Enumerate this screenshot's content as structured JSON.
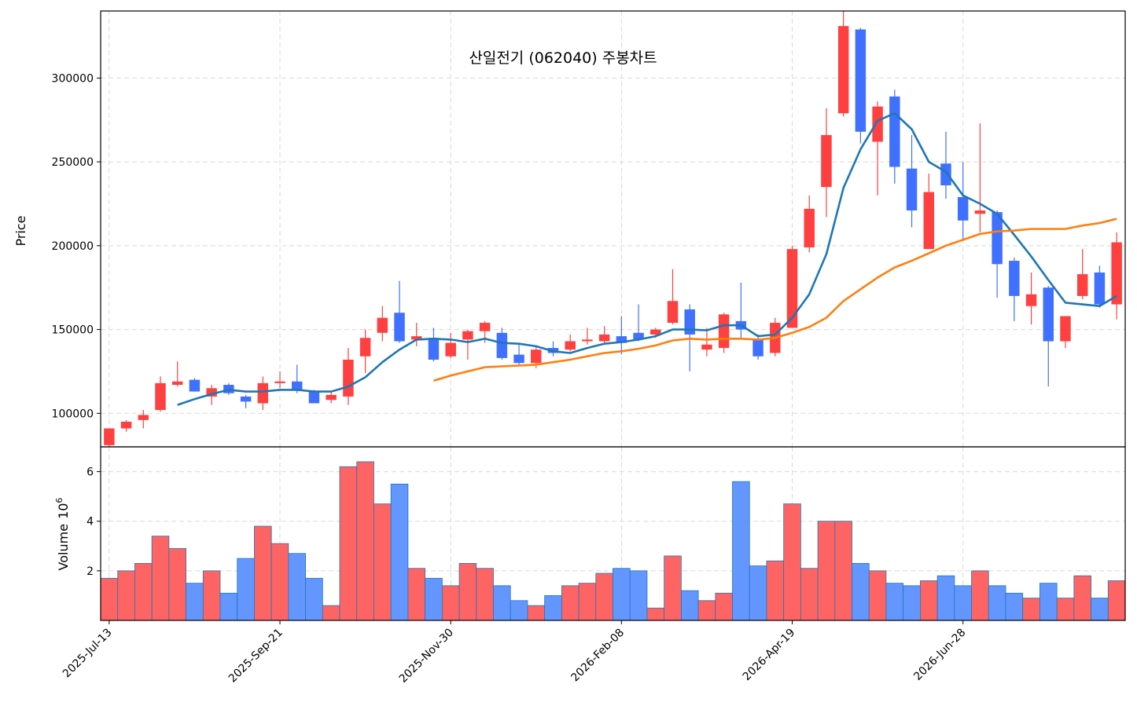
{
  "chart_data": [
    {
      "type": "candlestick",
      "title": "산일전기 (062040) 주봉차트",
      "ylabel": "Price",
      "ylim": [
        80000,
        340000
      ],
      "yticks": [
        100000,
        150000,
        200000,
        250000,
        300000
      ],
      "ytick_labels": [
        "100000",
        "150000",
        "200000",
        "250000",
        "300000"
      ],
      "x_tick_labels": [
        "2025-Jul-13",
        "2025-Sep-21",
        "2025-Nov-30",
        "2026-Feb-08",
        "2026-Apr-19",
        "2026-Jun-28"
      ],
      "x_tick_indices": [
        0,
        10,
        20,
        30,
        40,
        50
      ],
      "grid": true,
      "colors": {
        "up": "#ff4040",
        "down": "#4070ff",
        "ma_short": "#1f77b4",
        "ma_long": "#ff7f0e"
      },
      "ohlc": [
        {
          "date": "2025-Jul-13",
          "open": 81000,
          "high": 91000,
          "low": 80000,
          "close": 91000
        },
        {
          "date": "2025-Jul-20",
          "open": 91000,
          "high": 96000,
          "low": 89000,
          "close": 95000
        },
        {
          "date": "2025-Jul-27",
          "open": 96000,
          "high": 102000,
          "low": 91000,
          "close": 99000
        },
        {
          "date": "2025-Aug-03",
          "open": 102000,
          "high": 122000,
          "low": 101000,
          "close": 118000
        },
        {
          "date": "2025-Aug-10",
          "open": 117000,
          "high": 131000,
          "low": 116000,
          "close": 119000
        },
        {
          "date": "2025-Aug-17",
          "open": 120000,
          "high": 121000,
          "low": 113000,
          "close": 113000
        },
        {
          "date": "2025-Aug-24",
          "open": 110000,
          "high": 117000,
          "low": 105000,
          "close": 115000
        },
        {
          "date": "2025-Aug-31",
          "open": 117000,
          "high": 118000,
          "low": 111000,
          "close": 112000
        },
        {
          "date": "2025-Sep-07",
          "open": 110000,
          "high": 111000,
          "low": 103000,
          "close": 107000
        },
        {
          "date": "2025-Sep-14",
          "open": 106000,
          "high": 122000,
          "low": 102000,
          "close": 118000
        },
        {
          "date": "2025-Sep-21",
          "open": 118000,
          "high": 125000,
          "low": 115000,
          "close": 119000
        },
        {
          "date": "2025-Sep-28",
          "open": 119000,
          "high": 129000,
          "low": 112000,
          "close": 114000
        },
        {
          "date": "2025-Oct-05",
          "open": 113000,
          "high": 114000,
          "low": 106000,
          "close": 106000
        },
        {
          "date": "2025-Oct-12",
          "open": 108000,
          "high": 113000,
          "low": 106000,
          "close": 111000
        },
        {
          "date": "2025-Oct-19",
          "open": 110000,
          "high": 139000,
          "low": 105000,
          "close": 132000
        },
        {
          "date": "2025-Oct-26",
          "open": 134000,
          "high": 150000,
          "low": 124000,
          "close": 145000
        },
        {
          "date": "2025-Nov-02",
          "open": 148000,
          "high": 164000,
          "low": 143000,
          "close": 157000
        },
        {
          "date": "2025-Nov-09",
          "open": 160000,
          "high": 179000,
          "low": 142000,
          "close": 143000
        },
        {
          "date": "2025-Nov-16",
          "open": 144000,
          "high": 154000,
          "low": 140000,
          "close": 146000
        },
        {
          "date": "2025-Nov-23",
          "open": 145000,
          "high": 151000,
          "low": 131000,
          "close": 132000
        },
        {
          "date": "2025-Nov-30",
          "open": 134000,
          "high": 148000,
          "low": 133000,
          "close": 142000
        },
        {
          "date": "2025-Dec-07",
          "open": 144000,
          "high": 150000,
          "low": 132000,
          "close": 149000
        },
        {
          "date": "2025-Dec-14",
          "open": 149000,
          "high": 155000,
          "low": 142000,
          "close": 154000
        },
        {
          "date": "2025-Dec-21",
          "open": 148000,
          "high": 151000,
          "low": 132000,
          "close": 133000
        },
        {
          "date": "2025-Dec-28",
          "open": 135000,
          "high": 141000,
          "low": 129000,
          "close": 130000
        },
        {
          "date": "2026-Jan-04",
          "open": 130000,
          "high": 140000,
          "low": 127000,
          "close": 138000
        },
        {
          "date": "2026-Jan-11",
          "open": 139000,
          "high": 143000,
          "low": 134000,
          "close": 136000
        },
        {
          "date": "2026-Jan-18",
          "open": 138000,
          "high": 147000,
          "low": 137000,
          "close": 143000
        },
        {
          "date": "2026-Jan-25",
          "open": 143000,
          "high": 151000,
          "low": 141000,
          "close": 144000
        },
        {
          "date": "2026-Feb-01",
          "open": 143000,
          "high": 152000,
          "low": 142000,
          "close": 147000
        },
        {
          "date": "2026-Feb-08",
          "open": 146000,
          "high": 158000,
          "low": 135000,
          "close": 142000
        },
        {
          "date": "2026-Feb-15",
          "open": 148000,
          "high": 165000,
          "low": 143000,
          "close": 144000
        },
        {
          "date": "2026-Feb-22",
          "open": 147000,
          "high": 151000,
          "low": 145000,
          "close": 150000
        },
        {
          "date": "2026-Mar-01",
          "open": 154000,
          "high": 186000,
          "low": 153000,
          "close": 167000
        },
        {
          "date": "2026-Mar-08",
          "open": 162000,
          "high": 165000,
          "low": 125000,
          "close": 147000
        },
        {
          "date": "2026-Mar-15",
          "open": 138000,
          "high": 151000,
          "low": 134000,
          "close": 141000
        },
        {
          "date": "2026-Mar-22",
          "open": 139000,
          "high": 160000,
          "low": 136000,
          "close": 159000
        },
        {
          "date": "2026-Mar-29",
          "open": 155000,
          "high": 178000,
          "low": 144000,
          "close": 150000
        },
        {
          "date": "2026-Apr-05",
          "open": 144000,
          "high": 147000,
          "low": 132000,
          "close": 134000
        },
        {
          "date": "2026-Apr-12",
          "open": 136000,
          "high": 157000,
          "low": 134000,
          "close": 154000
        },
        {
          "date": "2026-Apr-19",
          "open": 151000,
          "high": 200000,
          "low": 151000,
          "close": 198000
        },
        {
          "date": "2026-Apr-26",
          "open": 199000,
          "high": 230000,
          "low": 196000,
          "close": 222000
        },
        {
          "date": "2026-May-03",
          "open": 235000,
          "high": 282000,
          "low": 217000,
          "close": 266000
        },
        {
          "date": "2026-May-10",
          "open": 279000,
          "high": 340000,
          "low": 277000,
          "close": 331000
        },
        {
          "date": "2026-May-17",
          "open": 329000,
          "high": 330000,
          "low": 261000,
          "close": 268000
        },
        {
          "date": "2026-May-24",
          "open": 262000,
          "high": 286000,
          "low": 230000,
          "close": 283000
        },
        {
          "date": "2026-May-31",
          "open": 289000,
          "high": 293000,
          "low": 237000,
          "close": 247000
        },
        {
          "date": "2026-Jun-07",
          "open": 246000,
          "high": 266000,
          "low": 211000,
          "close": 221000
        },
        {
          "date": "2026-Jun-14",
          "open": 198000,
          "high": 243000,
          "low": 198000,
          "close": 232000
        },
        {
          "date": "2026-Jun-21",
          "open": 249000,
          "high": 268000,
          "low": 228000,
          "close": 236000
        },
        {
          "date": "2026-Jun-28",
          "open": 229000,
          "high": 250000,
          "low": 204000,
          "close": 215000
        },
        {
          "date": "2026-Jul-05",
          "open": 219000,
          "high": 273000,
          "low": 208000,
          "close": 221000
        },
        {
          "date": "2026-Jul-12",
          "open": 220000,
          "high": 221000,
          "low": 169000,
          "close": 189000
        },
        {
          "date": "2026-Jul-19",
          "open": 191000,
          "high": 193000,
          "low": 155000,
          "close": 170000
        },
        {
          "date": "2026-Jul-26",
          "open": 164000,
          "high": 184000,
          "low": 153000,
          "close": 171000
        },
        {
          "date": "2026-Aug-02",
          "open": 175000,
          "high": 176000,
          "low": 116000,
          "close": 143000
        },
        {
          "date": "2026-Aug-09",
          "open": 143000,
          "high": 158000,
          "low": 139000,
          "close": 158000
        },
        {
          "date": "2026-Aug-16",
          "open": 170000,
          "high": 198000,
          "low": 168000,
          "close": 183000
        },
        {
          "date": "2026-Aug-23",
          "open": 184000,
          "high": 188000,
          "low": 163000,
          "close": 165000
        },
        {
          "date": "2026-Aug-30",
          "open": 165000,
          "high": 208000,
          "low": 156000,
          "close": 202000
        }
      ],
      "ma_short": [
        null,
        null,
        null,
        null,
        105000,
        108500,
        111500,
        114000,
        113000,
        113000,
        114000,
        114000,
        113000,
        113000,
        116000,
        121500,
        130500,
        138000,
        144000,
        144500,
        144000,
        142500,
        144500,
        142000,
        141500,
        140000,
        137000,
        136000,
        139000,
        141500,
        142500,
        144000,
        146000,
        150000,
        150000,
        149500,
        152500,
        152500,
        146000,
        147000,
        157000,
        171000,
        195000,
        234500,
        257500,
        274500,
        279000,
        269500,
        250000,
        244000,
        230000,
        225000,
        219000,
        206500,
        193500,
        179500,
        166000,
        165000,
        164000,
        170000
      ],
      "ma_long": [
        null,
        null,
        null,
        null,
        null,
        null,
        null,
        null,
        null,
        null,
        null,
        null,
        null,
        null,
        null,
        null,
        null,
        null,
        null,
        119500,
        122500,
        125000,
        127500,
        128000,
        128500,
        129000,
        130500,
        132000,
        134000,
        136000,
        137000,
        138500,
        140500,
        143500,
        144500,
        144000,
        144500,
        144500,
        144000,
        145000,
        148000,
        151500,
        157000,
        167000,
        174000,
        181000,
        187000,
        191000,
        195500,
        200000,
        203500,
        207000,
        208500,
        209000,
        210000,
        210000,
        210000,
        212000,
        213500,
        216000
      ]
    },
    {
      "type": "bar",
      "ylabel": "Volume",
      "yscale_label": "10^6",
      "yscale_base": "10",
      "yscale_exp": "6",
      "ylim": [
        0,
        7
      ],
      "yticks": [
        2,
        4,
        6
      ],
      "ytick_labels": [
        "2",
        "4",
        "6"
      ],
      "grid": true,
      "colors": {
        "up": "#ff6464",
        "down": "#6496ff",
        "edge": "#1f77b4"
      },
      "values": [
        1.7,
        2.0,
        2.3,
        3.4,
        2.9,
        1.5,
        2.0,
        1.1,
        2.5,
        3.8,
        3.1,
        2.7,
        1.7,
        0.6,
        6.2,
        6.4,
        4.7,
        5.5,
        2.1,
        1.7,
        1.4,
        2.3,
        2.1,
        1.4,
        0.8,
        0.6,
        1.0,
        1.4,
        1.5,
        1.9,
        2.1,
        2.0,
        0.5,
        2.6,
        1.2,
        0.8,
        1.1,
        5.6,
        2.2,
        2.4,
        4.7,
        2.1,
        4.0,
        4.0,
        2.3,
        2.0,
        1.5,
        1.4,
        1.6,
        1.8,
        1.4,
        2.0,
        1.4,
        1.1,
        0.9,
        1.5,
        0.9,
        1.8,
        0.9,
        1.6
      ]
    }
  ]
}
